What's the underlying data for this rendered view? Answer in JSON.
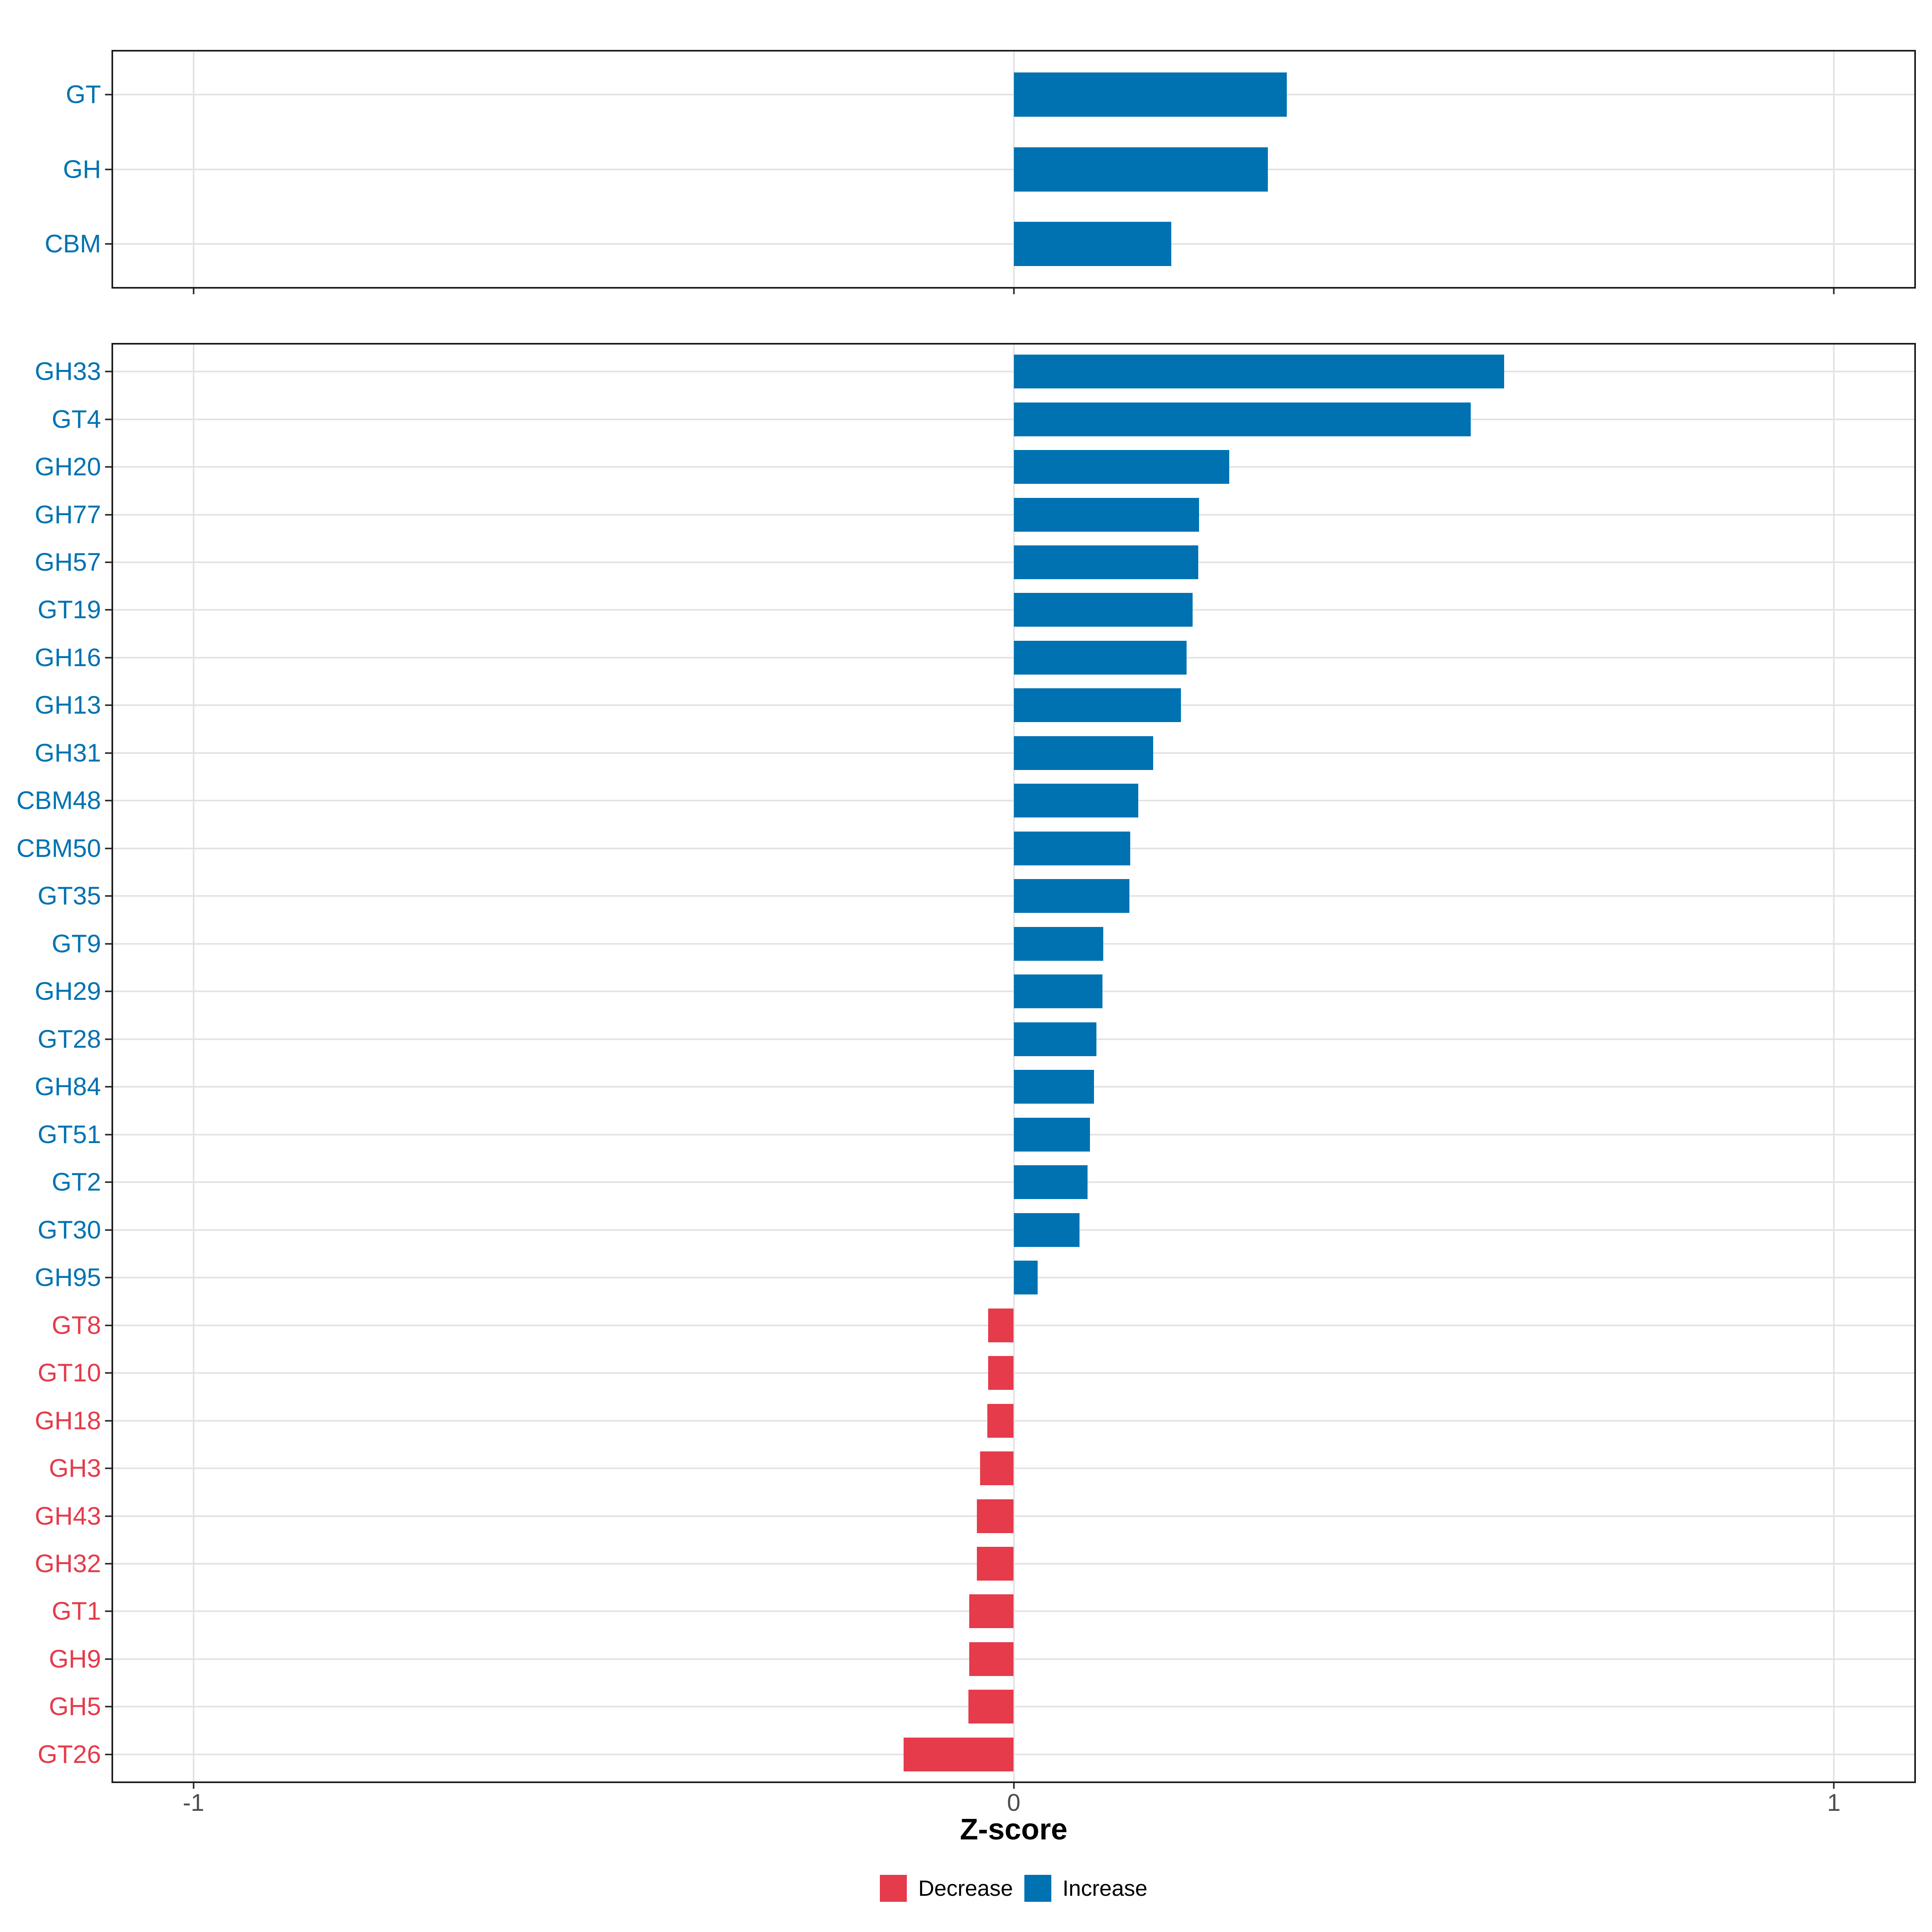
{
  "colors": {
    "increase": "#0072B2",
    "decrease": "#E53B4B",
    "grid": "#E3E3E3",
    "panel_border": "#1A1A1A",
    "tick_mark": "#333333",
    "tick_label": "#4D4D4D",
    "background": "#FFFFFF"
  },
  "chart_data": {
    "type": "bar",
    "orientation": "horizontal",
    "title": "",
    "xlabel": "Z-score",
    "ylabel": "",
    "xlim": [
      -1.1,
      1.1
    ],
    "x_ticks": [
      -1,
      0,
      1
    ],
    "x_tick_labels": [
      "-1",
      "0",
      "1"
    ],
    "grid": "major-only",
    "legend_position": "bottom",
    "legend": [
      {
        "label": "Decrease",
        "direction": "decrease"
      },
      {
        "label": "Increase",
        "direction": "increase"
      }
    ],
    "panels": [
      {
        "id": "class-summary",
        "categories": [
          "GT",
          "GH",
          "CBM"
        ],
        "values": [
          0.333,
          0.31,
          0.192
        ]
      },
      {
        "id": "family-detail",
        "categories": [
          "GH33",
          "GT4",
          "GH20",
          "GH77",
          "GH57",
          "GT19",
          "GH16",
          "GH13",
          "GH31",
          "CBM48",
          "CBM50",
          "GT35",
          "GT9",
          "GH29",
          "GT28",
          "GH84",
          "GT51",
          "GT2",
          "GT30",
          "GH95",
          "GT8",
          "GT10",
          "GH18",
          "GH3",
          "GH43",
          "GH32",
          "GT1",
          "GH9",
          "GH5",
          "GT26"
        ],
        "values": [
          0.598,
          0.557,
          0.263,
          0.226,
          0.225,
          0.218,
          0.211,
          0.204,
          0.17,
          0.152,
          0.142,
          0.141,
          0.109,
          0.108,
          0.101,
          0.098,
          0.093,
          0.09,
          0.08,
          0.029,
          -0.031,
          -0.031,
          -0.032,
          -0.041,
          -0.045,
          -0.045,
          -0.054,
          -0.054,
          -0.055,
          -0.134
        ]
      }
    ]
  }
}
